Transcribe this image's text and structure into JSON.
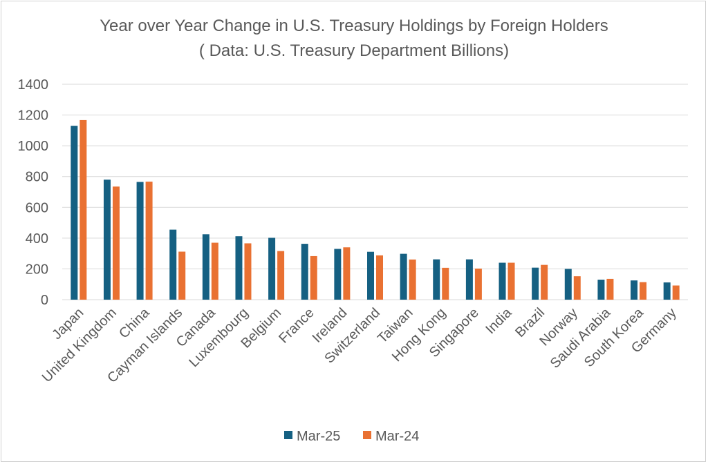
{
  "chart_data": {
    "type": "bar",
    "title": "Year over Year Change in U.S. Treasury Holdings by Foreign Holders",
    "subtitle": "( Data: U.S. Treasury Department Billions)",
    "xlabel": "",
    "ylabel": "",
    "ylim": [
      0,
      1400
    ],
    "yticks": [
      "0",
      "200",
      "400",
      "600",
      "800",
      "1000",
      "1200",
      "1400"
    ],
    "grid": true,
    "legend_position": "bottom",
    "categories": [
      "Japan",
      "United Kingdom",
      "China",
      "Cayman Islands",
      "Canada",
      "Luxembourg",
      "Belgium",
      "France",
      "Ireland",
      "Switzerland",
      "Taiwan",
      "Hong Kong",
      "Singapore",
      "India",
      "Brazil",
      "Norway",
      "Saudi Arabia",
      "South Korea",
      "Germany"
    ],
    "series": [
      {
        "name": "Mar-25",
        "color": "#156082",
        "values": [
          1130,
          780,
          765,
          455,
          425,
          412,
          402,
          363,
          330,
          311,
          298,
          262,
          262,
          240,
          208,
          200,
          130,
          125,
          112
        ]
      },
      {
        "name": "Mar-24",
        "color": "#E97132",
        "values": [
          1167,
          735,
          767,
          312,
          370,
          366,
          316,
          283,
          340,
          288,
          261,
          207,
          202,
          240,
          226,
          152,
          135,
          114,
          92
        ]
      }
    ]
  }
}
